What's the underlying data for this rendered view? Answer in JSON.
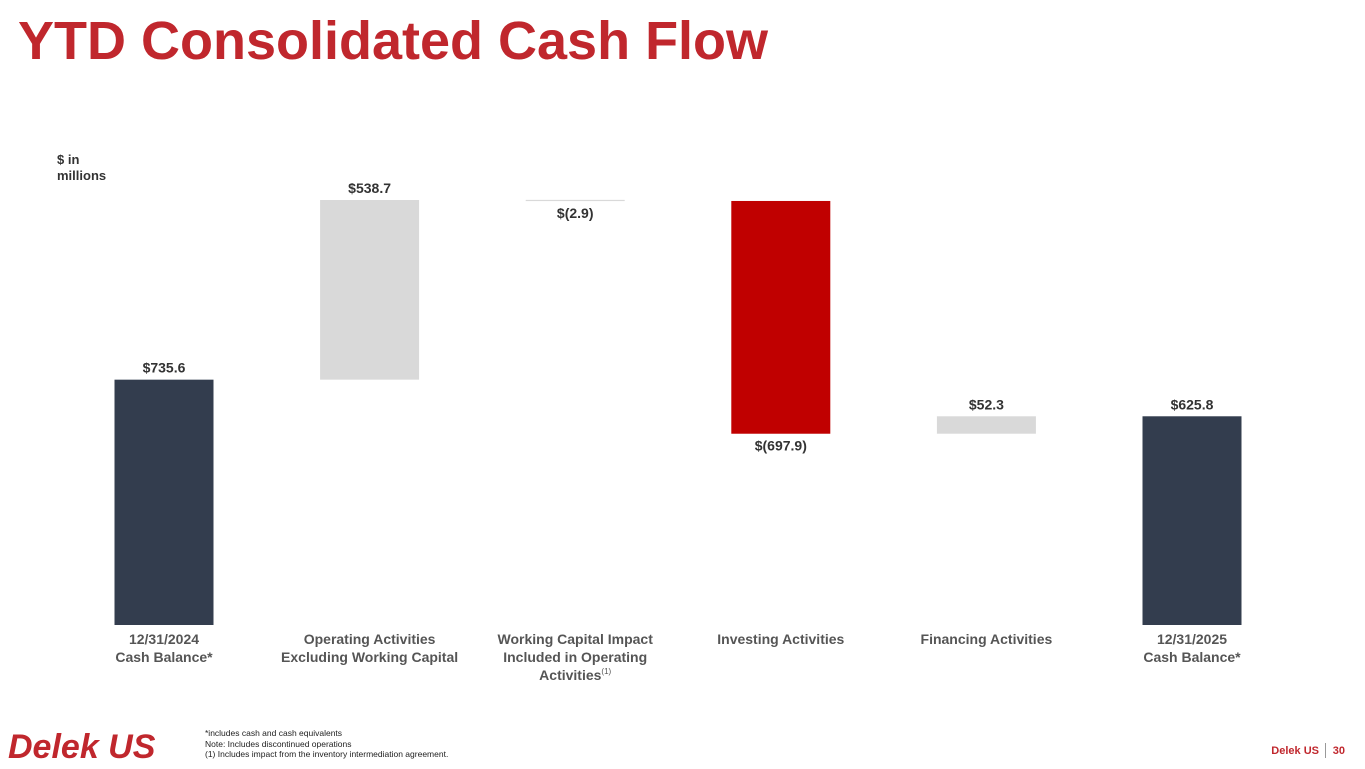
{
  "slide": {
    "title": "YTD Consolidated Cash Flow",
    "unit_label": "$ in millions",
    "footnotes": [
      "*includes cash and cash equivalents",
      "Note: Includes discontinued operations",
      "(1) Includes impact from the inventory intermediation agreement."
    ],
    "logo_text": "Delek US",
    "footer_brand": "Delek US",
    "page_number": "30"
  },
  "chart_data": {
    "type": "waterfall",
    "title": "",
    "xlabel": "",
    "ylabel": "$ in millions",
    "grid": false,
    "legend": "none",
    "ylim": [
      0,
      1274.3
    ],
    "colors": {
      "total": "#333d4e",
      "positive": "#d9d9d9",
      "negative_small": "#d9d9d9",
      "negative_large": "#c00000",
      "label": "#333333"
    },
    "steps": [
      {
        "category_lines": [
          "12/31/2024",
          "Cash Balance*"
        ],
        "value": 735.6,
        "kind": "total",
        "label": "$735.6",
        "color_key": "total",
        "label_pos": "above"
      },
      {
        "category_lines": [
          "Operating Activities",
          "Excluding Working Capital"
        ],
        "value": 538.7,
        "kind": "delta",
        "label": "$538.7",
        "color_key": "positive",
        "label_pos": "above"
      },
      {
        "category_lines": [
          "Working Capital Impact",
          "Included in Operating",
          "Activities"
        ],
        "superscript": "(1)",
        "value": -2.9,
        "kind": "delta",
        "label": "$(2.9)",
        "color_key": "negative_small",
        "label_pos": "below"
      },
      {
        "category_lines": [
          "Investing Activities"
        ],
        "value": -697.9,
        "kind": "delta",
        "label": "$(697.9)",
        "color_key": "negative_large",
        "label_pos": "below"
      },
      {
        "category_lines": [
          "Financing Activities"
        ],
        "value": 52.3,
        "kind": "delta",
        "label": "$52.3",
        "color_key": "positive",
        "label_pos": "above"
      },
      {
        "category_lines": [
          "12/31/2025",
          "Cash Balance*"
        ],
        "value": 625.8,
        "kind": "total",
        "label": "$625.8",
        "color_key": "total",
        "label_pos": "above"
      }
    ]
  }
}
